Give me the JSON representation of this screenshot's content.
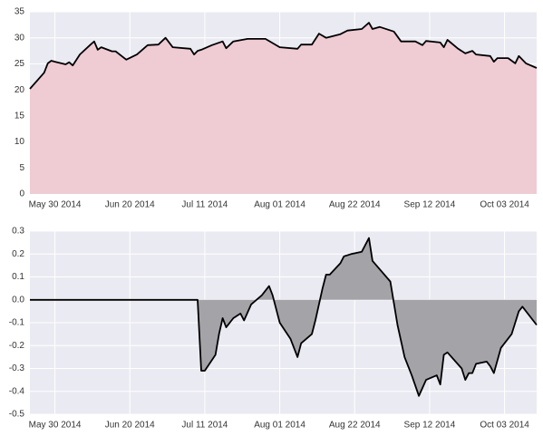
{
  "chart_data": [
    {
      "type": "area",
      "color": "#000000",
      "fill": "#efcbd3",
      "background": "#eaeaf2",
      "grid": true,
      "x": [
        "2014-05-23",
        "2014-05-27",
        "2014-05-28",
        "2014-05-29",
        "2014-05-30",
        "2014-06-02",
        "2014-06-03",
        "2014-06-04",
        "2014-06-06",
        "2014-06-09",
        "2014-06-10",
        "2014-06-11",
        "2014-06-12",
        "2014-06-15",
        "2014-06-16",
        "2014-06-19",
        "2014-06-22",
        "2014-06-24",
        "2014-06-25",
        "2014-06-28",
        "2014-06-30",
        "2014-07-02",
        "2014-07-07",
        "2014-07-08",
        "2014-07-09",
        "2014-07-10",
        "2014-07-13",
        "2014-07-16",
        "2014-07-17",
        "2014-07-19",
        "2014-07-23",
        "2014-07-28",
        "2014-08-01",
        "2014-08-06",
        "2014-08-07",
        "2014-08-10",
        "2014-08-12",
        "2014-08-14",
        "2014-08-18",
        "2014-08-20",
        "2014-08-24",
        "2014-08-26",
        "2014-08-27",
        "2014-08-29",
        "2014-09-02",
        "2014-09-04",
        "2014-09-08",
        "2014-09-10",
        "2014-09-11",
        "2014-09-15",
        "2014-09-16",
        "2014-09-17",
        "2014-09-20",
        "2014-09-22",
        "2014-09-24",
        "2014-09-25",
        "2014-09-29",
        "2014-09-30",
        "2014-10-01",
        "2014-10-04",
        "2014-10-06",
        "2014-10-07",
        "2014-10-09",
        "2014-10-12"
      ],
      "values": [
        20.2,
        23.3,
        25.1,
        25.6,
        25.4,
        24.9,
        25.3,
        24.7,
        26.8,
        28.7,
        29.3,
        27.7,
        28.2,
        27.4,
        27.4,
        25.8,
        26.8,
        28.0,
        28.6,
        28.7,
        30.0,
        28.2,
        27.9,
        26.8,
        27.5,
        27.7,
        28.6,
        29.3,
        28.0,
        29.3,
        29.8,
        29.8,
        28.2,
        27.9,
        28.7,
        28.7,
        30.8,
        30.0,
        30.7,
        31.4,
        31.7,
        32.9,
        31.7,
        32.1,
        31.2,
        29.3,
        29.3,
        28.6,
        29.4,
        29.1,
        28.2,
        29.6,
        27.9,
        27.0,
        27.5,
        26.8,
        26.5,
        25.4,
        26.1,
        26.1,
        25.1,
        26.5,
        25.1,
        24.2
      ],
      "xlim": [
        "2014-05-23",
        "2014-10-12"
      ],
      "xticks": [
        {
          "value": "2014-05-30",
          "label": "May 30 2014"
        },
        {
          "value": "2014-06-20",
          "label": "Jun 20 2014"
        },
        {
          "value": "2014-07-11",
          "label": "Jul 11 2014"
        },
        {
          "value": "2014-08-01",
          "label": "Aug 01 2014"
        },
        {
          "value": "2014-08-22",
          "label": "Aug 22 2014"
        },
        {
          "value": "2014-09-12",
          "label": "Sep 12 2014"
        },
        {
          "value": "2014-10-03",
          "label": "Oct 03 2014"
        }
      ],
      "ylim": [
        0,
        35
      ],
      "yticks": [
        0,
        5,
        10,
        15,
        20,
        25,
        30,
        35
      ]
    },
    {
      "type": "area",
      "color": "#000000",
      "fill": "#a4a3a8",
      "background": "#eaeaf2",
      "grid": true,
      "x": [
        "2014-05-23",
        "2014-07-09",
        "2014-07-10",
        "2014-07-11",
        "2014-07-14",
        "2014-07-15",
        "2014-07-16",
        "2014-07-17",
        "2014-07-19",
        "2014-07-21",
        "2014-07-22",
        "2014-07-24",
        "2014-07-27",
        "2014-07-29",
        "2014-07-30",
        "2014-08-01",
        "2014-08-04",
        "2014-08-06",
        "2014-08-07",
        "2014-08-10",
        "2014-08-11",
        "2014-08-13",
        "2014-08-14",
        "2014-08-15",
        "2014-08-18",
        "2014-08-19",
        "2014-08-21",
        "2014-08-24",
        "2014-08-26",
        "2014-08-27",
        "2014-09-01",
        "2014-09-03",
        "2014-09-05",
        "2014-09-07",
        "2014-09-09",
        "2014-09-11",
        "2014-09-14",
        "2014-09-15",
        "2014-09-16",
        "2014-09-17",
        "2014-09-21",
        "2014-09-22",
        "2014-09-23",
        "2014-09-24",
        "2014-09-25",
        "2014-09-28",
        "2014-09-29",
        "2014-09-30",
        "2014-10-02",
        "2014-10-05",
        "2014-10-07",
        "2014-10-08",
        "2014-10-12"
      ],
      "values": [
        0,
        0,
        -0.31,
        -0.31,
        -0.24,
        -0.15,
        -0.08,
        -0.12,
        -0.08,
        -0.06,
        -0.09,
        -0.02,
        0.02,
        0.06,
        0.02,
        -0.1,
        -0.17,
        -0.25,
        -0.19,
        -0.15,
        -0.09,
        0.05,
        0.11,
        0.11,
        0.16,
        0.19,
        0.2,
        0.21,
        0.27,
        0.17,
        0.08,
        -0.11,
        -0.25,
        -0.33,
        -0.42,
        -0.35,
        -0.33,
        -0.37,
        -0.24,
        -0.23,
        -0.3,
        -0.35,
        -0.32,
        -0.32,
        -0.28,
        -0.27,
        -0.29,
        -0.32,
        -0.21,
        -0.15,
        -0.05,
        -0.03,
        -0.11
      ],
      "xlim": [
        "2014-05-23",
        "2014-10-12"
      ],
      "xticks": [
        {
          "value": "2014-05-30",
          "label": "May 30 2014"
        },
        {
          "value": "2014-06-20",
          "label": "Jun 20 2014"
        },
        {
          "value": "2014-07-11",
          "label": "Jul 11 2014"
        },
        {
          "value": "2014-08-01",
          "label": "Aug 01 2014"
        },
        {
          "value": "2014-08-22",
          "label": "Aug 22 2014"
        },
        {
          "value": "2014-09-12",
          "label": "Sep 12 2014"
        },
        {
          "value": "2014-10-03",
          "label": "Oct 03 2014"
        }
      ],
      "ylim": [
        -0.5,
        0.3
      ],
      "yticks": [
        -0.5,
        -0.4,
        -0.3,
        -0.2,
        -0.1,
        {
          "value": 0,
          "label": "0.0"
        },
        0.1,
        0.2,
        0.3
      ]
    }
  ]
}
